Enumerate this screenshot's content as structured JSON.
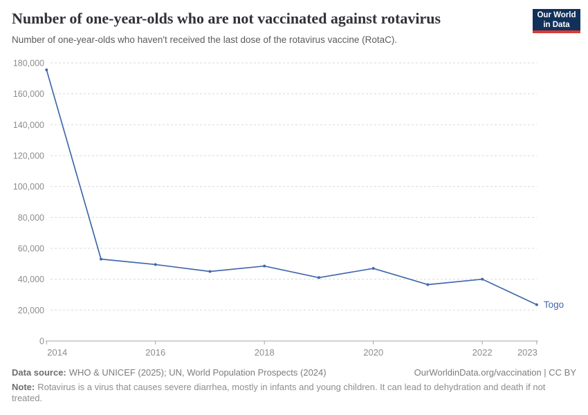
{
  "header": {
    "title": "Number of one-year-olds who are not vaccinated against rotavirus",
    "subtitle": "Number of one-year-olds who haven't received the last dose of the rotavirus vaccine (RotaC).",
    "logo": {
      "line1": "Our World",
      "line2": "in Data"
    }
  },
  "chart_data": {
    "type": "line",
    "title": "Number of one-year-olds who are not vaccinated against rotavirus",
    "xlabel": "",
    "ylabel": "",
    "xlim": [
      2014,
      2023
    ],
    "ylim": [
      0,
      180000
    ],
    "grid": "horizontal-dashed",
    "legend_position": "end-of-line-label",
    "x": [
      2014,
      2015,
      2016,
      2017,
      2018,
      2019,
      2020,
      2021,
      2022,
      2023
    ],
    "series": [
      {
        "name": "Togo",
        "color": "#4168ab",
        "values": [
          175500,
          53000,
          49500,
          45000,
          48500,
          41000,
          47000,
          36500,
          40000,
          23500
        ]
      }
    ],
    "x_tick_labels": [
      "2014",
      "2016",
      "2018",
      "2020",
      "2022",
      "2023"
    ],
    "x_tick_years": [
      2014,
      2016,
      2018,
      2020,
      2022,
      2023
    ],
    "y_tick_values": [
      0,
      20000,
      40000,
      60000,
      80000,
      100000,
      120000,
      140000,
      160000,
      180000
    ],
    "y_tick_labels": [
      "0",
      "20,000",
      "40,000",
      "60,000",
      "80,000",
      "100,000",
      "120,000",
      "140,000",
      "160,000",
      "180,000"
    ],
    "end_label": "Togo"
  },
  "colors": {
    "line": "#4168ab",
    "grid": "#dadada",
    "axis": "#a3a3a3",
    "tick_text": "#8c8c8c",
    "accent_navy": "#12315a",
    "accent_red": "#dc3a34"
  },
  "footer": {
    "datasource_label": "Data source:",
    "datasource_text": "WHO & UNICEF (2025); UN, World Population Prospects (2024)",
    "link_text": "OurWorldinData.org/vaccination | CC BY",
    "note_label": "Note:",
    "note_text": "Rotavirus is a virus that causes severe diarrhea, mostly in infants and young children. It can lead to dehydration and death if not treated."
  }
}
